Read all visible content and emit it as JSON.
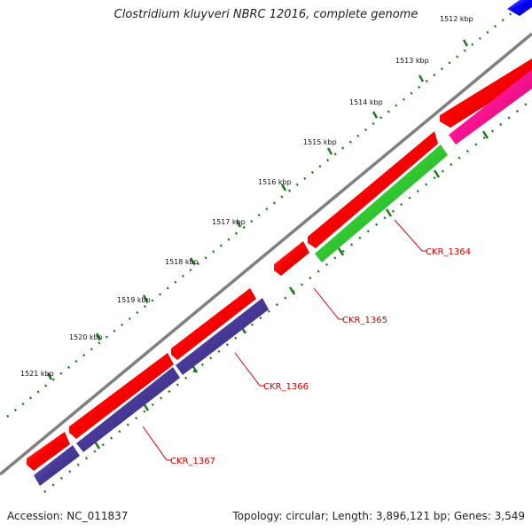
{
  "title": "Clostridium kluyveri NBRC 12016, complete genome",
  "accession": "Accession: NC_011837",
  "summary": "Topology: circular; Length: 3,896,121 bp; Genes: 3,549",
  "ticks": [
    "1512 kbp",
    "1513 kbp",
    "1514 kbp",
    "1515 kbp",
    "1516 kbp",
    "1517 kbp",
    "1518 kbp",
    "1519 kbp",
    "1520 kbp",
    "1521 kbp"
  ],
  "gene_labels": [
    "CKR_1364",
    "CKR_1365",
    "CKR_1366",
    "CKR_1367"
  ],
  "colors": {
    "backbone": "#7f7f7f",
    "tick_green": "#1a7a1a",
    "label_red": "#d40000",
    "cds_red": "#ff0000",
    "cds_blue": "#0000ff",
    "cds_navy": "#4a3a9a",
    "cds_green": "#33cc33",
    "cds_pink": "#ff1493"
  }
}
